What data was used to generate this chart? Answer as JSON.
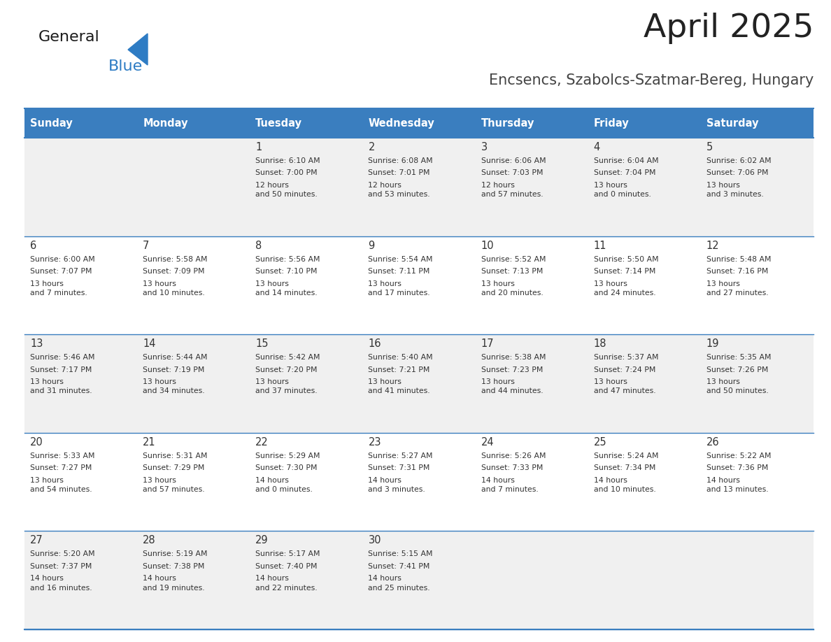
{
  "title": "April 2025",
  "subtitle": "Encsencs, Szabolcs-Szatmar-Bereg, Hungary",
  "days_of_week": [
    "Sunday",
    "Monday",
    "Tuesday",
    "Wednesday",
    "Thursday",
    "Friday",
    "Saturday"
  ],
  "header_bg": "#3a7ebf",
  "header_text": "#ffffff",
  "row_bg_odd": "#f0f0f0",
  "row_bg_even": "#ffffff",
  "cell_border": "#3a7ebf",
  "day_number_color": "#333333",
  "content_color": "#333333",
  "title_color": "#222222",
  "subtitle_color": "#444444",
  "weeks": [
    [
      {
        "day": null,
        "sunrise": null,
        "sunset": null,
        "daylight": null
      },
      {
        "day": null,
        "sunrise": null,
        "sunset": null,
        "daylight": null
      },
      {
        "day": 1,
        "sunrise": "6:10 AM",
        "sunset": "7:00 PM",
        "daylight": "12 hours\nand 50 minutes."
      },
      {
        "day": 2,
        "sunrise": "6:08 AM",
        "sunset": "7:01 PM",
        "daylight": "12 hours\nand 53 minutes."
      },
      {
        "day": 3,
        "sunrise": "6:06 AM",
        "sunset": "7:03 PM",
        "daylight": "12 hours\nand 57 minutes."
      },
      {
        "day": 4,
        "sunrise": "6:04 AM",
        "sunset": "7:04 PM",
        "daylight": "13 hours\nand 0 minutes."
      },
      {
        "day": 5,
        "sunrise": "6:02 AM",
        "sunset": "7:06 PM",
        "daylight": "13 hours\nand 3 minutes."
      }
    ],
    [
      {
        "day": 6,
        "sunrise": "6:00 AM",
        "sunset": "7:07 PM",
        "daylight": "13 hours\nand 7 minutes."
      },
      {
        "day": 7,
        "sunrise": "5:58 AM",
        "sunset": "7:09 PM",
        "daylight": "13 hours\nand 10 minutes."
      },
      {
        "day": 8,
        "sunrise": "5:56 AM",
        "sunset": "7:10 PM",
        "daylight": "13 hours\nand 14 minutes."
      },
      {
        "day": 9,
        "sunrise": "5:54 AM",
        "sunset": "7:11 PM",
        "daylight": "13 hours\nand 17 minutes."
      },
      {
        "day": 10,
        "sunrise": "5:52 AM",
        "sunset": "7:13 PM",
        "daylight": "13 hours\nand 20 minutes."
      },
      {
        "day": 11,
        "sunrise": "5:50 AM",
        "sunset": "7:14 PM",
        "daylight": "13 hours\nand 24 minutes."
      },
      {
        "day": 12,
        "sunrise": "5:48 AM",
        "sunset": "7:16 PM",
        "daylight": "13 hours\nand 27 minutes."
      }
    ],
    [
      {
        "day": 13,
        "sunrise": "5:46 AM",
        "sunset": "7:17 PM",
        "daylight": "13 hours\nand 31 minutes."
      },
      {
        "day": 14,
        "sunrise": "5:44 AM",
        "sunset": "7:19 PM",
        "daylight": "13 hours\nand 34 minutes."
      },
      {
        "day": 15,
        "sunrise": "5:42 AM",
        "sunset": "7:20 PM",
        "daylight": "13 hours\nand 37 minutes."
      },
      {
        "day": 16,
        "sunrise": "5:40 AM",
        "sunset": "7:21 PM",
        "daylight": "13 hours\nand 41 minutes."
      },
      {
        "day": 17,
        "sunrise": "5:38 AM",
        "sunset": "7:23 PM",
        "daylight": "13 hours\nand 44 minutes."
      },
      {
        "day": 18,
        "sunrise": "5:37 AM",
        "sunset": "7:24 PM",
        "daylight": "13 hours\nand 47 minutes."
      },
      {
        "day": 19,
        "sunrise": "5:35 AM",
        "sunset": "7:26 PM",
        "daylight": "13 hours\nand 50 minutes."
      }
    ],
    [
      {
        "day": 20,
        "sunrise": "5:33 AM",
        "sunset": "7:27 PM",
        "daylight": "13 hours\nand 54 minutes."
      },
      {
        "day": 21,
        "sunrise": "5:31 AM",
        "sunset": "7:29 PM",
        "daylight": "13 hours\nand 57 minutes."
      },
      {
        "day": 22,
        "sunrise": "5:29 AM",
        "sunset": "7:30 PM",
        "daylight": "14 hours\nand 0 minutes."
      },
      {
        "day": 23,
        "sunrise": "5:27 AM",
        "sunset": "7:31 PM",
        "daylight": "14 hours\nand 3 minutes."
      },
      {
        "day": 24,
        "sunrise": "5:26 AM",
        "sunset": "7:33 PM",
        "daylight": "14 hours\nand 7 minutes."
      },
      {
        "day": 25,
        "sunrise": "5:24 AM",
        "sunset": "7:34 PM",
        "daylight": "14 hours\nand 10 minutes."
      },
      {
        "day": 26,
        "sunrise": "5:22 AM",
        "sunset": "7:36 PM",
        "daylight": "14 hours\nand 13 minutes."
      }
    ],
    [
      {
        "day": 27,
        "sunrise": "5:20 AM",
        "sunset": "7:37 PM",
        "daylight": "14 hours\nand 16 minutes."
      },
      {
        "day": 28,
        "sunrise": "5:19 AM",
        "sunset": "7:38 PM",
        "daylight": "14 hours\nand 19 minutes."
      },
      {
        "day": 29,
        "sunrise": "5:17 AM",
        "sunset": "7:40 PM",
        "daylight": "14 hours\nand 22 minutes."
      },
      {
        "day": 30,
        "sunrise": "5:15 AM",
        "sunset": "7:41 PM",
        "daylight": "14 hours\nand 25 minutes."
      },
      {
        "day": null,
        "sunrise": null,
        "sunset": null,
        "daylight": null
      },
      {
        "day": null,
        "sunrise": null,
        "sunset": null,
        "daylight": null
      },
      {
        "day": null,
        "sunrise": null,
        "sunset": null,
        "daylight": null
      }
    ]
  ],
  "logo_general_color": "#1a1a1a",
  "logo_blue_color": "#2e7cc4",
  "logo_triangle_color": "#2e7cc4"
}
